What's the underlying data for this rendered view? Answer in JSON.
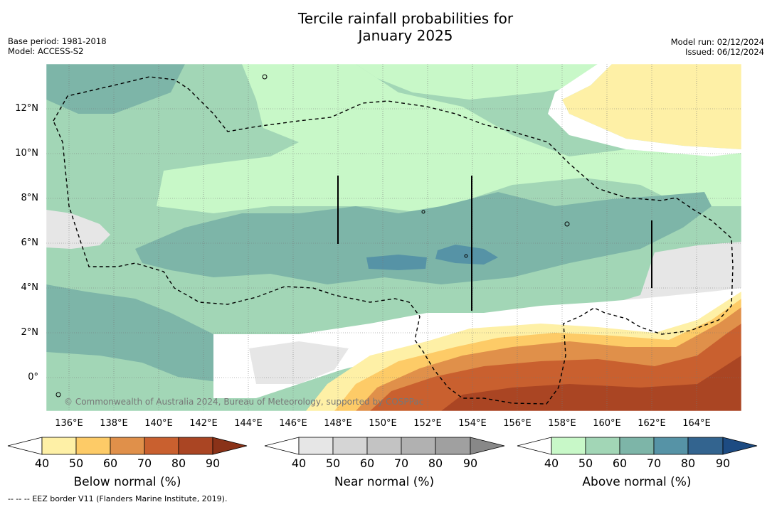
{
  "title": {
    "line1": "Tercile rainfall probabilities for",
    "line2": "January 2025"
  },
  "meta_left": {
    "base_period": "Base period: 1981-2018",
    "model": "Model: ACCESS-S2"
  },
  "meta_right": {
    "model_run": "Model run: 02/12/2024",
    "issued": "Issued: 06/12/2024"
  },
  "map": {
    "lat_labels": [
      "12°N",
      "10°N",
      "8°N",
      "6°N",
      "4°N",
      "2°N",
      "0°"
    ],
    "lon_labels": [
      "136°E",
      "138°E",
      "140°E",
      "142°E",
      "144°E",
      "146°E",
      "148°E",
      "150°E",
      "152°E",
      "154°E",
      "156°E",
      "158°E",
      "160°E",
      "162°E",
      "164°E"
    ],
    "copyright": "© Commonwealth of Australia 2024, Bureau of Meteorology, supported by COSPPac",
    "legend_eez_border": "EEZ border V11 (Flanders Marine Institute, 2019)."
  },
  "colorbars": {
    "below": {
      "title": "Below normal (%)",
      "ticks": [
        "40",
        "50",
        "60",
        "70",
        "80",
        "90"
      ],
      "colors": [
        "#ffffff",
        "#fef0a6",
        "#fdcb67",
        "#e0904a",
        "#c9602f",
        "#aa4523",
        "#8a3218"
      ]
    },
    "near": {
      "title": "Near normal (%)",
      "ticks": [
        "40",
        "50",
        "60",
        "70",
        "80",
        "90"
      ],
      "colors": [
        "#ffffff",
        "#e6e6e6",
        "#d5d5d5",
        "#c3c3c3",
        "#b1b1b1",
        "#a0a0a0",
        "#888888"
      ]
    },
    "above": {
      "title": "Above normal (%)",
      "ticks": [
        "40",
        "50",
        "60",
        "70",
        "80",
        "90"
      ],
      "colors": [
        "#ffffff",
        "#c8f8c8",
        "#a2d6b6",
        "#7db5a8",
        "#5693a6",
        "#33648f",
        "#1d4b82"
      ]
    }
  },
  "footer": {
    "dash_symbol": "--  --  --",
    "text": "EEZ border V11 (Flanders Marine Institute, 2019)."
  }
}
